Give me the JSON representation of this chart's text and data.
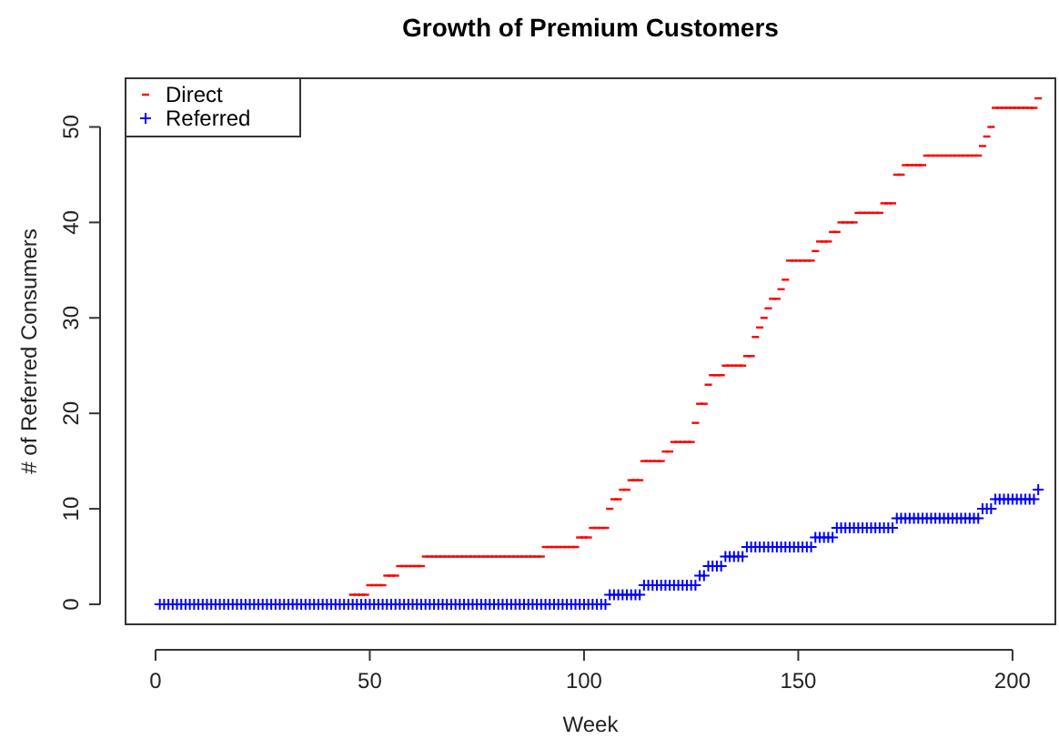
{
  "chart_data": {
    "type": "scatter",
    "title": "Growth of Premium Customers",
    "xlabel": "Week",
    "ylabel": "# of Referred Consumers",
    "x": [
      1,
      2,
      3,
      4,
      5,
      6,
      7,
      8,
      9,
      10,
      11,
      12,
      13,
      14,
      15,
      16,
      17,
      18,
      19,
      20,
      21,
      22,
      23,
      24,
      25,
      26,
      27,
      28,
      29,
      30,
      31,
      32,
      33,
      34,
      35,
      36,
      37,
      38,
      39,
      40,
      41,
      42,
      43,
      44,
      45,
      46,
      47,
      48,
      49,
      50,
      51,
      52,
      53,
      54,
      55,
      56,
      57,
      58,
      59,
      60,
      61,
      62,
      63,
      64,
      65,
      66,
      67,
      68,
      69,
      70,
      71,
      72,
      73,
      74,
      75,
      76,
      77,
      78,
      79,
      80,
      81,
      82,
      83,
      84,
      85,
      86,
      87,
      88,
      89,
      90,
      91,
      92,
      93,
      94,
      95,
      96,
      97,
      98,
      99,
      100,
      101,
      102,
      103,
      104,
      105,
      106,
      107,
      108,
      109,
      110,
      111,
      112,
      113,
      114,
      115,
      116,
      117,
      118,
      119,
      120,
      121,
      122,
      123,
      124,
      125,
      126,
      127,
      128,
      129,
      130,
      131,
      132,
      133,
      134,
      135,
      136,
      137,
      138,
      139,
      140,
      141,
      142,
      143,
      144,
      145,
      146,
      147,
      148,
      149,
      150,
      151,
      152,
      153,
      154,
      155,
      156,
      157,
      158,
      159,
      160,
      161,
      162,
      163,
      164,
      165,
      166,
      167,
      168,
      169,
      170,
      171,
      172,
      173,
      174,
      175,
      176,
      177,
      178,
      179,
      180,
      181,
      182,
      183,
      184,
      185,
      186,
      187,
      188,
      189,
      190,
      191,
      192,
      193,
      194,
      195,
      196,
      197,
      198,
      199,
      200,
      201,
      202,
      203,
      204,
      205,
      206
    ],
    "series": [
      {
        "name": "Direct",
        "color": "#ff0000",
        "x": [
          46,
          47,
          48,
          49,
          50,
          51,
          52,
          53,
          54,
          55,
          56,
          57,
          58,
          59,
          60,
          61,
          62,
          63,
          64,
          65,
          66,
          67,
          68,
          69,
          70,
          71,
          72,
          73,
          74,
          75,
          76,
          77,
          78,
          79,
          80,
          81,
          82,
          83,
          84,
          85,
          86,
          87,
          88,
          89,
          90,
          91,
          92,
          93,
          94,
          95,
          96,
          97,
          98,
          99,
          100,
          101,
          102,
          103,
          104,
          105,
          106,
          107,
          108,
          109,
          110,
          111,
          112,
          113,
          114,
          115,
          116,
          117,
          118,
          119,
          120,
          121,
          122,
          123,
          124,
          125,
          126,
          127,
          128,
          129,
          130,
          131,
          132,
          133,
          134,
          135,
          136,
          137,
          138,
          139,
          140,
          141,
          142,
          143,
          144,
          145,
          146,
          147,
          148,
          149,
          150,
          151,
          152,
          153,
          154,
          155,
          156,
          157,
          158,
          159,
          160,
          161,
          162,
          163,
          164,
          165,
          166,
          167,
          168,
          169,
          170,
          171,
          172,
          173,
          174,
          175,
          176,
          177,
          178,
          179,
          180,
          181,
          182,
          183,
          184,
          185,
          186,
          187,
          188,
          189,
          190,
          191,
          192,
          193,
          194,
          195,
          196,
          197,
          198,
          199,
          200,
          201,
          202,
          203,
          204,
          205,
          206
        ],
        "values": [
          1,
          1,
          1,
          1,
          2,
          2,
          2,
          2,
          3,
          3,
          3,
          4,
          4,
          4,
          4,
          4,
          4,
          5,
          5,
          5,
          5,
          5,
          5,
          5,
          5,
          5,
          5,
          5,
          5,
          5,
          5,
          5,
          5,
          5,
          5,
          5,
          5,
          5,
          5,
          5,
          5,
          5,
          5,
          5,
          5,
          6,
          6,
          6,
          6,
          6,
          6,
          6,
          6,
          7,
          7,
          7,
          8,
          8,
          8,
          8,
          10,
          11,
          11,
          12,
          12,
          13,
          13,
          13,
          15,
          15,
          15,
          15,
          15,
          16,
          16,
          17,
          17,
          17,
          17,
          17,
          19,
          21,
          21,
          23,
          24,
          24,
          24,
          25,
          25,
          25,
          25,
          25,
          26,
          26,
          28,
          29,
          30,
          31,
          32,
          32,
          33,
          34,
          36,
          36,
          36,
          36,
          36,
          36,
          37,
          38,
          38,
          38,
          39,
          39,
          40,
          40,
          40,
          40,
          41,
          41,
          41,
          41,
          41,
          41,
          42,
          42,
          42,
          45,
          45,
          46,
          46,
          46,
          46,
          46,
          47,
          47,
          47,
          47,
          47,
          47,
          47,
          47,
          47,
          47,
          47,
          47,
          47,
          48,
          49,
          50,
          52,
          52,
          52,
          52,
          52,
          52,
          52,
          52,
          52,
          52,
          53
        ]
      },
      {
        "name": "Referred",
        "color": "#0000ff",
        "marker": "cross",
        "values": [
          0,
          0,
          0,
          0,
          0,
          0,
          0,
          0,
          0,
          0,
          0,
          0,
          0,
          0,
          0,
          0,
          0,
          0,
          0,
          0,
          0,
          0,
          0,
          0,
          0,
          0,
          0,
          0,
          0,
          0,
          0,
          0,
          0,
          0,
          0,
          0,
          0,
          0,
          0,
          0,
          0,
          0,
          0,
          0,
          0,
          0,
          0,
          0,
          0,
          0,
          0,
          0,
          0,
          0,
          0,
          0,
          0,
          0,
          0,
          0,
          0,
          0,
          0,
          0,
          0,
          0,
          0,
          0,
          0,
          0,
          0,
          0,
          0,
          0,
          0,
          0,
          0,
          0,
          0,
          0,
          0,
          0,
          0,
          0,
          0,
          0,
          0,
          0,
          0,
          0,
          0,
          0,
          0,
          0,
          0,
          0,
          0,
          0,
          0,
          0,
          0,
          0,
          0,
          0,
          0,
          1,
          1,
          1,
          1,
          1,
          1,
          1,
          1,
          2,
          2,
          2,
          2,
          2,
          2,
          2,
          2,
          2,
          2,
          2,
          2,
          2,
          3,
          3,
          4,
          4,
          4,
          4,
          5,
          5,
          5,
          5,
          5,
          6,
          6,
          6,
          6,
          6,
          6,
          6,
          6,
          6,
          6,
          6,
          6,
          6,
          6,
          6,
          6,
          7,
          7,
          7,
          7,
          7,
          8,
          8,
          8,
          8,
          8,
          8,
          8,
          8,
          8,
          8,
          8,
          8,
          8,
          8,
          9,
          9,
          9,
          9,
          9,
          9,
          9,
          9,
          9,
          9,
          9,
          9,
          9,
          9,
          9,
          9,
          9,
          9,
          9,
          9,
          10,
          10,
          10,
          11,
          11,
          11,
          11,
          11,
          11,
          11,
          11,
          11,
          11,
          12
        ]
      }
    ],
    "xlim": [
      -7,
      210
    ],
    "xticks": [
      0,
      50,
      100,
      150,
      200
    ],
    "ylim": [
      -2.1,
      55.1
    ],
    "yticks": [
      0,
      10,
      20,
      30,
      40,
      50
    ],
    "grid": false,
    "legend": "top left"
  }
}
